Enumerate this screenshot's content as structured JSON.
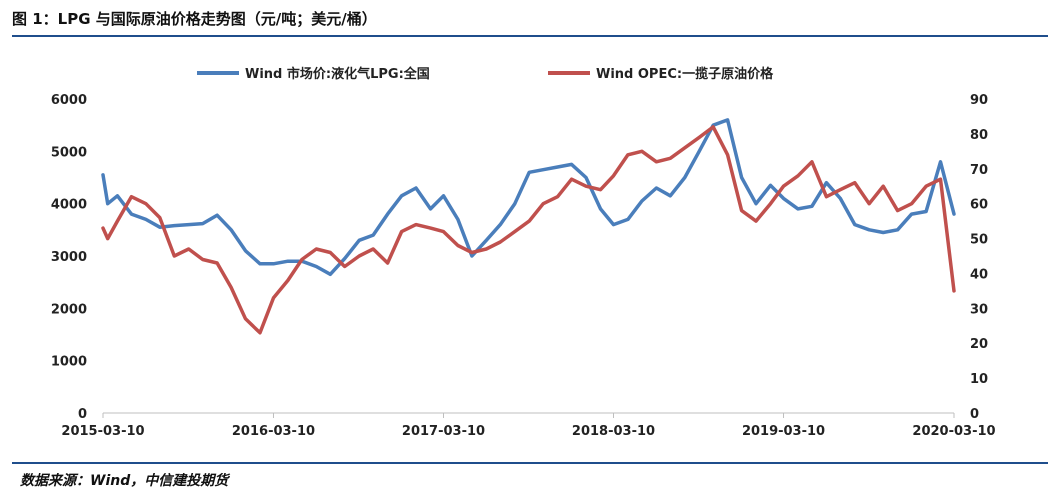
{
  "figure": {
    "title": "图 1：LPG 与国际原油价格走势图（元/吨；美元/桶）",
    "source": "数据来源：Wind，中信建投期货"
  },
  "colors": {
    "accent_rule": "#1f4e8c",
    "lpg": "#4a7ebb",
    "opec": "#c0504d"
  },
  "chart_data": {
    "type": "line",
    "legend_position": "top",
    "grid": false,
    "x_ticks": [
      "2015-03-10",
      "2016-03-10",
      "2017-03-10",
      "2018-03-10",
      "2019-03-10",
      "2020-03-10"
    ],
    "xlim": [
      "2015-03-10",
      "2020-03-10"
    ],
    "y_left": {
      "ylim": [
        0,
        6000
      ],
      "ticks": [
        0,
        1000,
        2000,
        3000,
        4000,
        5000,
        6000
      ]
    },
    "y_right": {
      "ylim": [
        0,
        90
      ],
      "ticks": [
        0,
        10,
        20,
        30,
        40,
        50,
        60,
        70,
        80,
        90
      ]
    },
    "series": [
      {
        "name": "Wind 市场价:液化气LPG:全国",
        "axis": "left",
        "x": [
          "2015-03-10",
          "2015-03-20",
          "2015-04-10",
          "2015-05-10",
          "2015-06-10",
          "2015-07-10",
          "2015-08-10",
          "2015-09-10",
          "2015-10-10",
          "2015-11-10",
          "2015-12-10",
          "2016-01-10",
          "2016-02-10",
          "2016-03-10",
          "2016-04-10",
          "2016-05-10",
          "2016-06-10",
          "2016-07-10",
          "2016-08-10",
          "2016-09-10",
          "2016-10-10",
          "2016-11-10",
          "2016-12-10",
          "2017-01-10",
          "2017-02-10",
          "2017-03-10",
          "2017-04-10",
          "2017-05-10",
          "2017-06-10",
          "2017-07-10",
          "2017-08-10",
          "2017-09-10",
          "2017-10-10",
          "2017-11-10",
          "2017-12-10",
          "2018-01-10",
          "2018-02-10",
          "2018-03-10",
          "2018-04-10",
          "2018-05-10",
          "2018-06-10",
          "2018-07-10",
          "2018-08-10",
          "2018-09-10",
          "2018-10-10",
          "2018-11-10",
          "2018-12-10",
          "2019-01-10",
          "2019-02-10",
          "2019-03-10",
          "2019-04-10",
          "2019-05-10",
          "2019-06-10",
          "2019-07-10",
          "2019-08-10",
          "2019-09-10",
          "2019-10-10",
          "2019-11-10",
          "2019-12-10",
          "2020-01-10",
          "2020-02-10",
          "2020-03-10"
        ],
        "values": [
          4550,
          4000,
          4150,
          3800,
          3700,
          3550,
          3580,
          3600,
          3620,
          3780,
          3500,
          3100,
          2850,
          2850,
          2900,
          2900,
          2800,
          2650,
          2950,
          3300,
          3400,
          3800,
          4150,
          4300,
          3900,
          4150,
          3700,
          3000,
          3300,
          3600,
          4000,
          4600,
          4650,
          4700,
          4750,
          4500,
          3900,
          3600,
          3700,
          4050,
          4300,
          4150,
          4500,
          5000,
          5500,
          5600,
          4500,
          4000,
          4350,
          4100,
          3900,
          3950,
          4400,
          4100,
          3600,
          3500,
          3450,
          3500,
          3800,
          3850,
          4800,
          3800
        ]
      },
      {
        "name": "Wind OPEC:一揽子原油价格",
        "axis": "right",
        "x": [
          "2015-03-10",
          "2015-03-20",
          "2015-04-10",
          "2015-05-10",
          "2015-06-10",
          "2015-07-10",
          "2015-08-10",
          "2015-09-10",
          "2015-10-10",
          "2015-11-10",
          "2015-12-10",
          "2016-01-10",
          "2016-02-10",
          "2016-03-10",
          "2016-04-10",
          "2016-05-10",
          "2016-06-10",
          "2016-07-10",
          "2016-08-10",
          "2016-09-10",
          "2016-10-10",
          "2016-11-10",
          "2016-12-10",
          "2017-01-10",
          "2017-02-10",
          "2017-03-10",
          "2017-04-10",
          "2017-05-10",
          "2017-06-10",
          "2017-07-10",
          "2017-08-10",
          "2017-09-10",
          "2017-10-10",
          "2017-11-10",
          "2017-12-10",
          "2018-01-10",
          "2018-02-10",
          "2018-03-10",
          "2018-04-10",
          "2018-05-10",
          "2018-06-10",
          "2018-07-10",
          "2018-08-10",
          "2018-09-10",
          "2018-10-10",
          "2018-11-10",
          "2018-12-10",
          "2019-01-10",
          "2019-02-10",
          "2019-03-10",
          "2019-04-10",
          "2019-05-10",
          "2019-06-10",
          "2019-07-10",
          "2019-08-10",
          "2019-09-10",
          "2019-10-10",
          "2019-11-10",
          "2019-12-10",
          "2020-01-10",
          "2020-02-10",
          "2020-03-10"
        ],
        "values": [
          53,
          50,
          55,
          62,
          60,
          56,
          45,
          47,
          44,
          43,
          36,
          27,
          23,
          33,
          38,
          44,
          47,
          46,
          42,
          45,
          47,
          43,
          52,
          54,
          53,
          52,
          48,
          46,
          47,
          49,
          52,
          55,
          60,
          62,
          67,
          65,
          64,
          68,
          74,
          75,
          72,
          73,
          76,
          79,
          82,
          74,
          58,
          55,
          60,
          65,
          68,
          72,
          62,
          64,
          66,
          60,
          65,
          58,
          60,
          65,
          67,
          35
        ]
      }
    ]
  }
}
